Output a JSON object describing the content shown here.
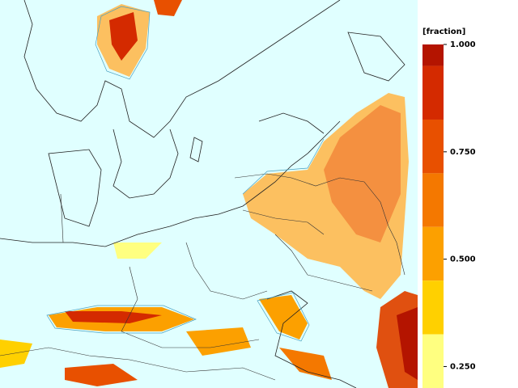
{
  "legend": {
    "title": "[fraction]",
    "lim": [
      0.2,
      1.0
    ],
    "ticks": [
      {
        "value": 1.0,
        "label": "1.000"
      },
      {
        "value": 0.75,
        "label": "0.750"
      },
      {
        "value": 0.5,
        "label": "0.500"
      },
      {
        "value": 0.25,
        "label": "0.250"
      }
    ],
    "levels": [
      {
        "from": 0.95,
        "to": 1.0,
        "color": "#b41400"
      },
      {
        "from": 0.825,
        "to": 0.95,
        "color": "#d42a00"
      },
      {
        "from": 0.7,
        "to": 0.825,
        "color": "#e85000"
      },
      {
        "from": 0.575,
        "to": 0.7,
        "color": "#f47800"
      },
      {
        "from": 0.45,
        "to": 0.575,
        "color": "#fca000"
      },
      {
        "from": 0.325,
        "to": 0.45,
        "color": "#ffd000"
      },
      {
        "from": 0.2,
        "to": 0.325,
        "color": "#ffff80"
      }
    ]
  }
}
